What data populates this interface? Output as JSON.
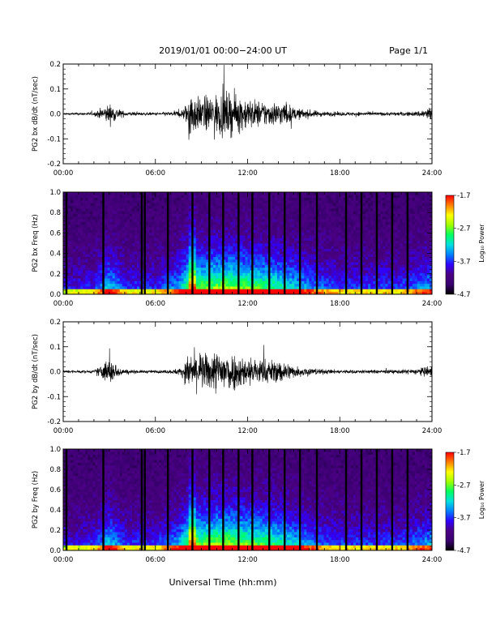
{
  "header": {
    "date_range": "2019/01/01  00:00−24:00 UT",
    "page": "Page 1/1"
  },
  "footer": {
    "xlabel": "Universal Time (hh:mm)"
  },
  "colors": {
    "trace": "#000000",
    "colorbar_stops": [
      "#000000",
      "#3a0070",
      "#4b0082",
      "#3000ff",
      "#0080ff",
      "#00e0e0",
      "#00ff60",
      "#a0ff00",
      "#ffff00",
      "#ff8000",
      "#ff0000"
    ]
  },
  "chart_data": [
    {
      "type": "line",
      "ylabel": "PG2 bx dB/dt (nT/sec)",
      "xlim": [
        "00:00",
        "24:00"
      ],
      "ylim": [
        -0.2,
        0.2
      ],
      "x_ticks": [
        "00:00",
        "06:00",
        "12:00",
        "18:00",
        "24:00"
      ],
      "y_ticks": [
        "-0.2",
        "-0.1",
        "0.0",
        "0.1",
        "0.2"
      ],
      "envelope_hours": [
        0,
        2,
        2.5,
        3,
        3.5,
        4,
        5,
        6,
        7,
        7.7,
        8,
        8.3,
        8.7,
        9.5,
        10.5,
        11.5,
        12.5,
        13.5,
        14.5,
        15,
        16,
        17,
        18,
        19,
        20,
        21,
        22,
        23,
        24
      ],
      "envelope_amp": [
        0.005,
        0.008,
        0.03,
        0.05,
        0.03,
        0.012,
        0.008,
        0.007,
        0.01,
        0.02,
        0.05,
        0.14,
        0.08,
        0.09,
        0.11,
        0.09,
        0.07,
        0.06,
        0.06,
        0.03,
        0.02,
        0.012,
        0.01,
        0.01,
        0.009,
        0.009,
        0.01,
        0.012,
        0.04
      ]
    },
    {
      "type": "heatmap",
      "ylabel": "PG2 bx Freq (Hz)",
      "xlim": [
        "00:00",
        "24:00"
      ],
      "ylim": [
        0.0,
        1.0
      ],
      "x_ticks": [
        "00:00",
        "06:00",
        "12:00",
        "18:00",
        "24:00"
      ],
      "y_ticks": [
        "0.0",
        "0.2",
        "0.4",
        "0.6",
        "0.8",
        "1.0"
      ],
      "colorbar": {
        "label": "Log₁₀ Power",
        "range": [
          -4.7,
          -1.7
        ],
        "ticks": [
          "-1.7",
          "-2.7",
          "-3.7",
          "-4.7"
        ]
      },
      "data_gap_hours": [
        0.2,
        2.6,
        5.1,
        5.3,
        6.8,
        8.4,
        9.5,
        10.4,
        11.4,
        12.3,
        13.4,
        14.4,
        15.4,
        16.5,
        18.4,
        19.4,
        20.4,
        21.4,
        22.4
      ]
    },
    {
      "type": "line",
      "ylabel": "PG2 by dB/dt (nT/sec)",
      "xlim": [
        "00:00",
        "24:00"
      ],
      "ylim": [
        -0.2,
        0.2
      ],
      "x_ticks": [
        "00:00",
        "06:00",
        "12:00",
        "18:00",
        "24:00"
      ],
      "y_ticks": [
        "-0.2",
        "-0.1",
        "0.0",
        "0.1",
        "0.2"
      ],
      "envelope_hours": [
        0,
        2,
        2.5,
        3,
        3.5,
        4,
        5,
        6,
        7,
        7.7,
        8,
        8.3,
        8.7,
        9.5,
        10.3,
        11.5,
        12.5,
        13.5,
        14.5,
        15,
        16,
        17,
        18,
        19,
        20,
        21,
        22,
        23,
        24
      ],
      "envelope_amp": [
        0.006,
        0.008,
        0.035,
        0.07,
        0.03,
        0.012,
        0.008,
        0.007,
        0.01,
        0.02,
        0.06,
        0.1,
        0.09,
        0.09,
        0.12,
        0.08,
        0.07,
        0.06,
        0.05,
        0.03,
        0.02,
        0.012,
        0.01,
        0.01,
        0.009,
        0.009,
        0.01,
        0.015,
        0.03
      ]
    },
    {
      "type": "heatmap",
      "ylabel": "PG2 by Freq (Hz)",
      "xlim": [
        "00:00",
        "24:00"
      ],
      "ylim": [
        0.0,
        1.0
      ],
      "x_ticks": [
        "00:00",
        "06:00",
        "12:00",
        "18:00",
        "24:00"
      ],
      "y_ticks": [
        "0.0",
        "0.2",
        "0.4",
        "0.6",
        "0.8",
        "1.0"
      ],
      "colorbar": {
        "label": "Log₁₀ Power",
        "range": [
          -4.7,
          -1.7
        ],
        "ticks": [
          "-1.7",
          "-2.7",
          "-3.7",
          "-4.7"
        ]
      },
      "data_gap_hours": [
        0.2,
        2.6,
        5.1,
        5.3,
        6.8,
        8.4,
        9.5,
        10.4,
        11.4,
        12.3,
        13.4,
        14.4,
        15.4,
        16.5,
        18.4,
        19.4,
        20.4,
        21.4,
        22.4
      ]
    }
  ]
}
